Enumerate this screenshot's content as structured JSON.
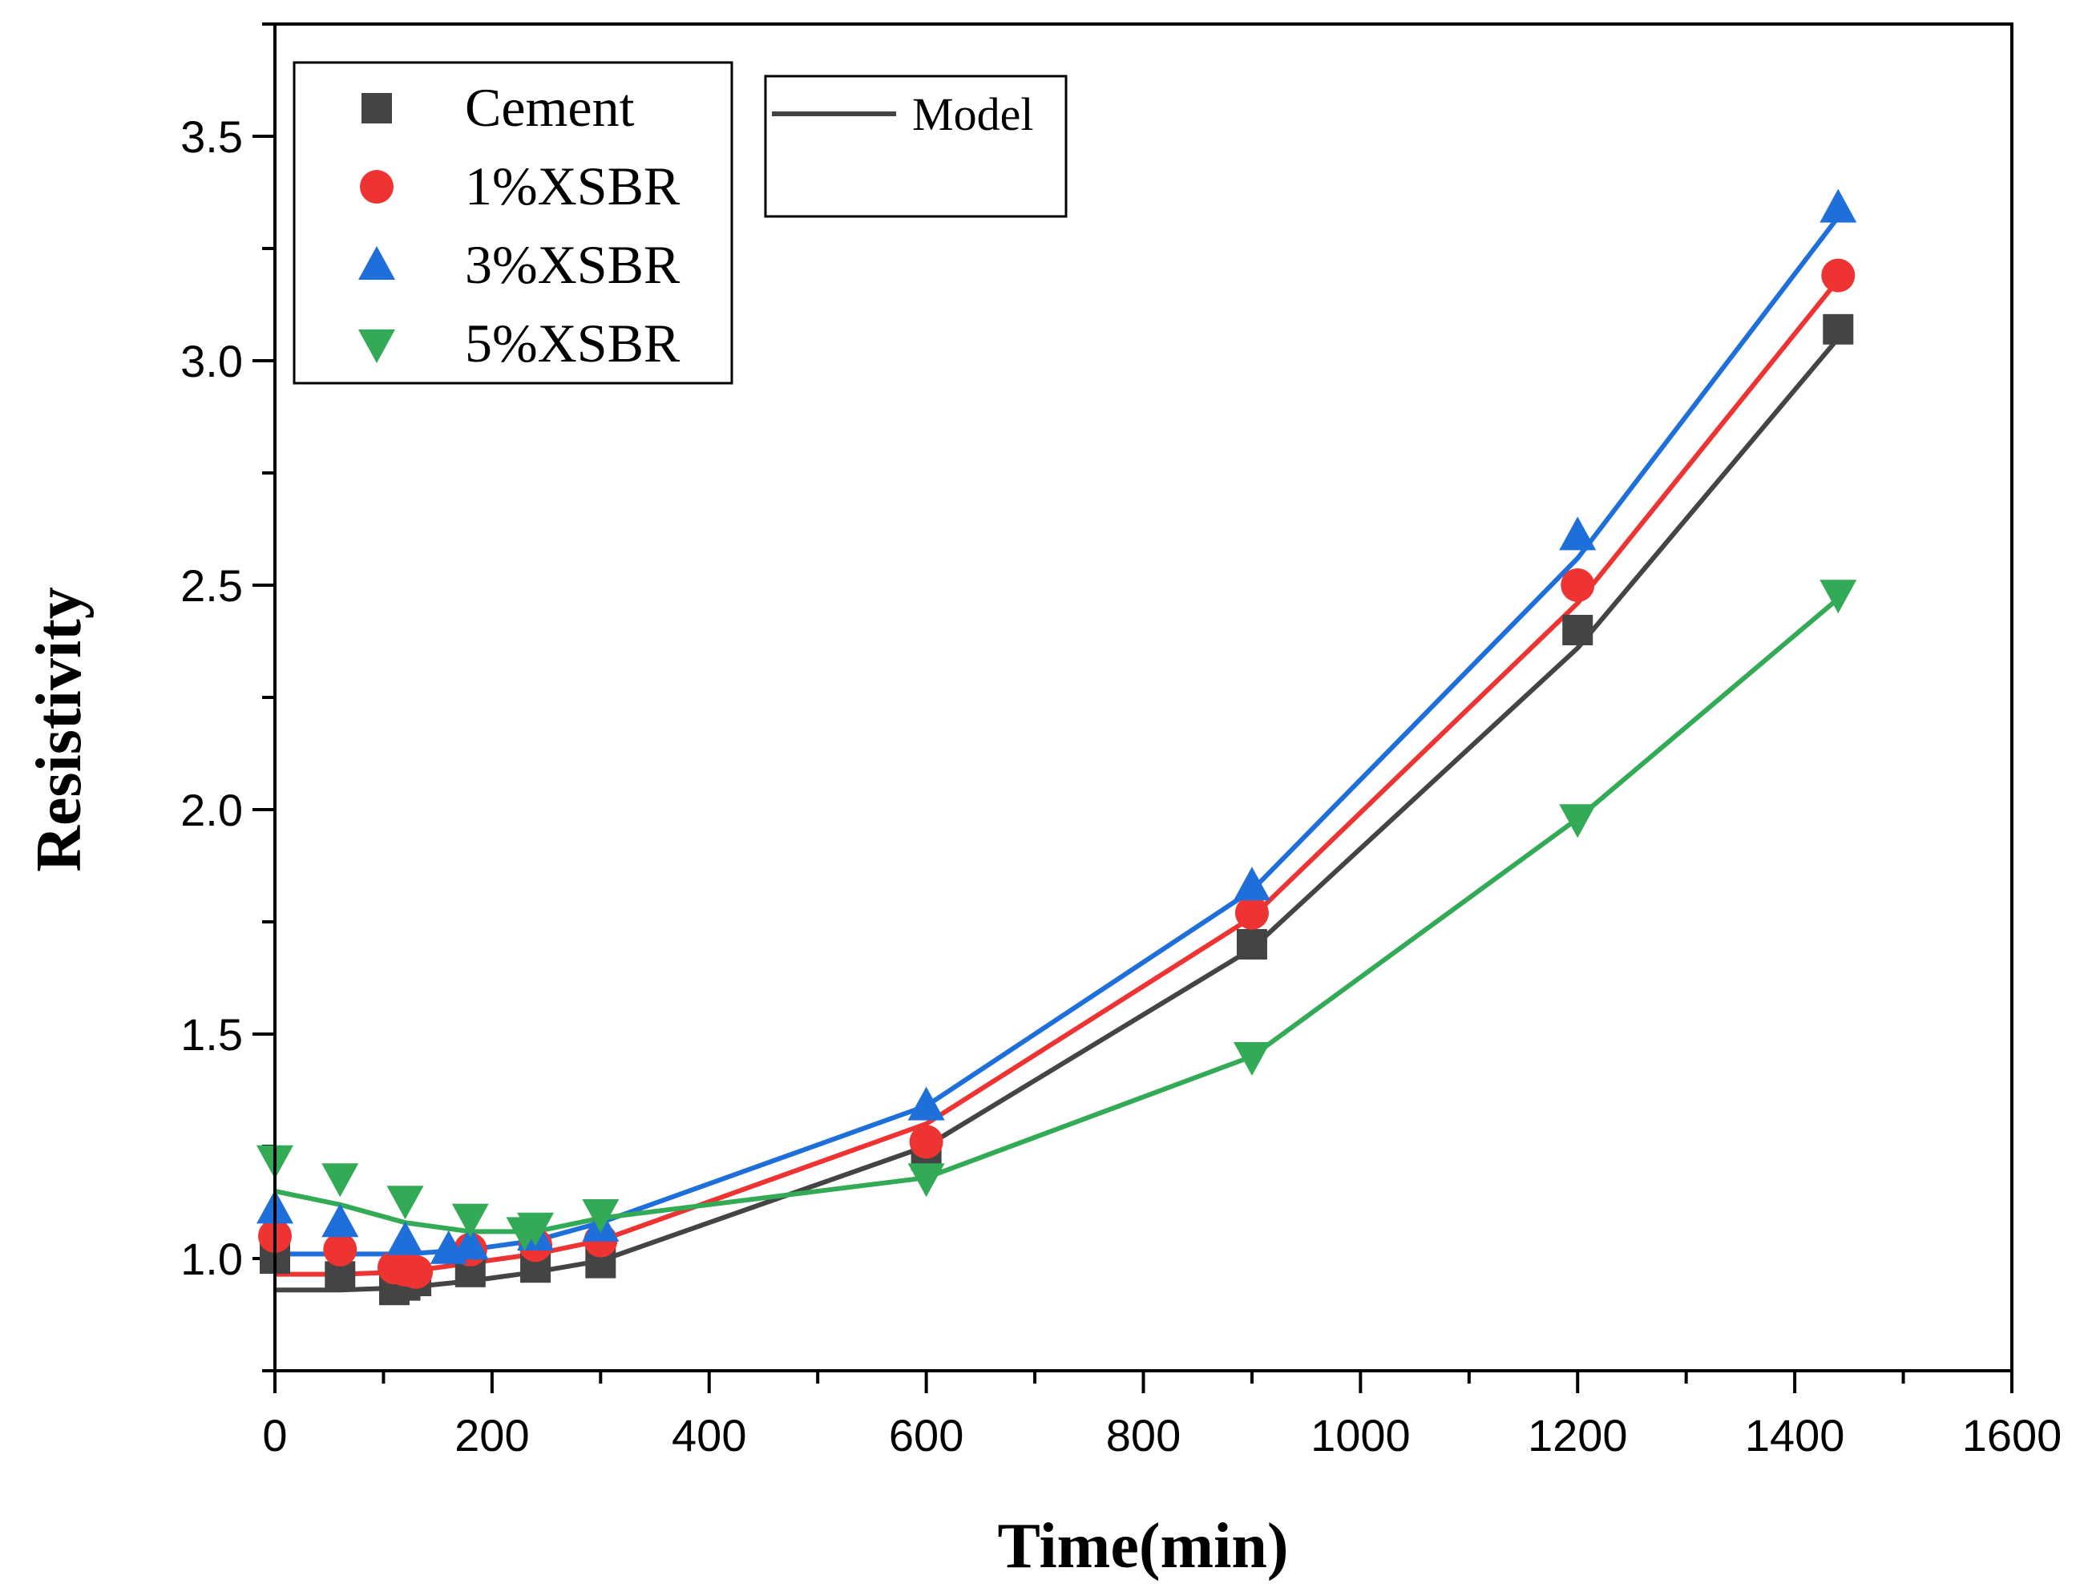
{
  "chart_data": {
    "type": "scatter",
    "title": "",
    "xlabel": "Time(min)",
    "ylabel": "Resistivity",
    "xlim": [
      0,
      1600
    ],
    "ylim": [
      0.75,
      3.75
    ],
    "xticks": [
      0,
      200,
      400,
      600,
      800,
      1000,
      1200,
      1400,
      1600
    ],
    "xtick_labels": [
      "0",
      "200",
      "400",
      "600",
      "800",
      "1000",
      "1200",
      "1400",
      "1600"
    ],
    "yticks": [
      1.0,
      1.5,
      2.0,
      2.5,
      3.0,
      3.5
    ],
    "ytick_labels": [
      "1.0",
      "1.5",
      "2.0",
      "2.5",
      "3.0",
      "3.5"
    ],
    "legend": {
      "placement": "top-left",
      "entries": [
        "Cement",
        "1%XSBR",
        "3%XSBR",
        "5%XSBR"
      ]
    },
    "model_legend": {
      "placement": "top-center",
      "label": "Model"
    },
    "series": [
      {
        "name": "Cement",
        "marker": "square",
        "color": "#444444",
        "points": [
          [
            0,
            1.0
          ],
          [
            60,
            0.96
          ],
          [
            110,
            0.93
          ],
          [
            120,
            0.94
          ],
          [
            130,
            0.95
          ],
          [
            180,
            0.97
          ],
          [
            240,
            0.98
          ],
          [
            300,
            0.99
          ],
          [
            600,
            1.23
          ],
          [
            900,
            1.7
          ],
          [
            1200,
            2.4
          ],
          [
            1440,
            3.07
          ]
        ],
        "model": [
          [
            0,
            0.93
          ],
          [
            60,
            0.93
          ],
          [
            120,
            0.935
          ],
          [
            180,
            0.95
          ],
          [
            240,
            0.97
          ],
          [
            300,
            0.995
          ],
          [
            600,
            1.25
          ],
          [
            900,
            1.69
          ],
          [
            1200,
            2.36
          ],
          [
            1440,
            3.05
          ]
        ]
      },
      {
        "name": "1%XSBR",
        "marker": "circle",
        "color": "#ee3333",
        "points": [
          [
            0,
            1.05
          ],
          [
            60,
            1.02
          ],
          [
            110,
            0.98
          ],
          [
            120,
            0.975
          ],
          [
            130,
            0.97
          ],
          [
            180,
            1.02
          ],
          [
            240,
            1.03
          ],
          [
            300,
            1.04
          ],
          [
            600,
            1.26
          ],
          [
            900,
            1.77
          ],
          [
            1200,
            2.5
          ],
          [
            1440,
            3.19
          ]
        ],
        "model": [
          [
            0,
            0.965
          ],
          [
            60,
            0.965
          ],
          [
            120,
            0.97
          ],
          [
            180,
            0.99
          ],
          [
            240,
            1.01
          ],
          [
            300,
            1.04
          ],
          [
            600,
            1.3
          ],
          [
            900,
            1.76
          ],
          [
            1200,
            2.46
          ],
          [
            1440,
            3.18
          ]
        ]
      },
      {
        "name": "3%XSBR",
        "marker": "triangle-up",
        "color": "#1f6fdb",
        "points": [
          [
            0,
            1.11
          ],
          [
            60,
            1.08
          ],
          [
            120,
            1.04
          ],
          [
            160,
            1.02
          ],
          [
            180,
            1.03
          ],
          [
            240,
            1.05
          ],
          [
            300,
            1.07
          ],
          [
            600,
            1.34
          ],
          [
            900,
            1.83
          ],
          [
            1200,
            2.61
          ],
          [
            1440,
            3.34
          ]
        ],
        "model": [
          [
            0,
            1.01
          ],
          [
            60,
            1.01
          ],
          [
            120,
            1.01
          ],
          [
            180,
            1.02
          ],
          [
            240,
            1.04
          ],
          [
            300,
            1.08
          ],
          [
            600,
            1.34
          ],
          [
            900,
            1.82
          ],
          [
            1200,
            2.56
          ],
          [
            1440,
            3.32
          ]
        ]
      },
      {
        "name": "5%XSBR",
        "marker": "triangle-down",
        "color": "#33aa55",
        "points": [
          [
            0,
            1.22
          ],
          [
            60,
            1.18
          ],
          [
            120,
            1.13
          ],
          [
            180,
            1.09
          ],
          [
            230,
            1.06
          ],
          [
            240,
            1.07
          ],
          [
            300,
            1.1
          ],
          [
            600,
            1.18
          ],
          [
            900,
            1.45
          ],
          [
            1200,
            1.98
          ],
          [
            1440,
            2.48
          ]
        ],
        "model": [
          [
            0,
            1.15
          ],
          [
            60,
            1.12
          ],
          [
            120,
            1.08
          ],
          [
            180,
            1.06
          ],
          [
            240,
            1.06
          ],
          [
            300,
            1.09
          ],
          [
            600,
            1.18
          ],
          [
            900,
            1.45
          ],
          [
            1200,
            1.98
          ],
          [
            1440,
            2.47
          ]
        ]
      }
    ]
  }
}
